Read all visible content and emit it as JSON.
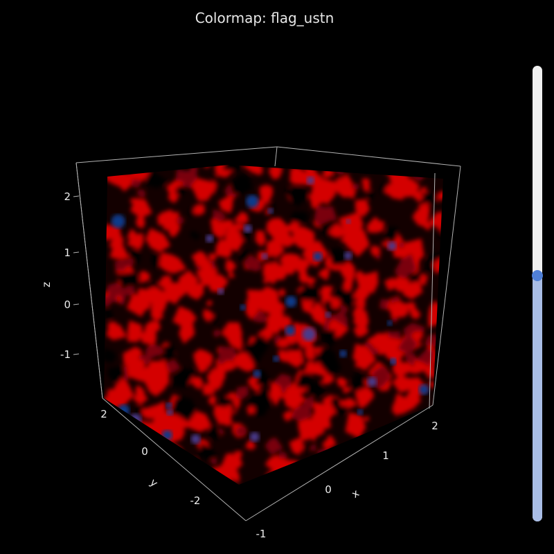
{
  "title": "Colormap: flag_ustn",
  "colors": {
    "background": "#000000",
    "axis_line": "#b4b4b4",
    "tick_text": "#eeeeee",
    "volume_red": "#d40000",
    "volume_blue": "#0a3a8a",
    "slider_track": "#f0f0f0",
    "slider_fill": "#a9bde6",
    "slider_handle": "#4f7fd6"
  },
  "slider": {
    "value": 0.46
  },
  "chart_data": {
    "type": "volume",
    "colormap": "flag_ustn",
    "xlabel": "x",
    "ylabel": "y",
    "zlabel": "z",
    "xlim": [
      -1,
      2
    ],
    "ylim": [
      -3,
      2.5
    ],
    "zlim": [
      -2,
      2.5
    ],
    "x_ticks": [
      "-1",
      "0",
      "1",
      "2"
    ],
    "y_ticks": [
      "-2",
      "0",
      "2"
    ],
    "z_ticks": [
      "-1",
      "0",
      "1",
      "2"
    ],
    "grid": false
  }
}
